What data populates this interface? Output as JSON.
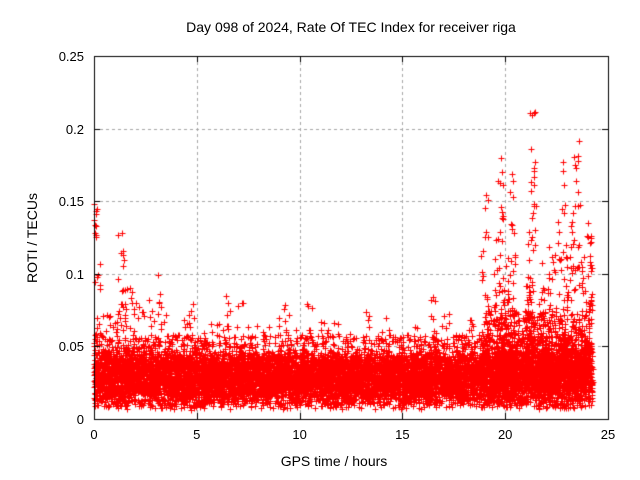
{
  "chart_data": {
    "type": "scatter",
    "title": "Day 098 of 2024, Rate Of TEC Index for receiver riga",
    "xlabel": "GPS time / hours",
    "ylabel": "ROTI / TECUs",
    "xlim": [
      0,
      25
    ],
    "ylim": [
      0,
      0.25
    ],
    "xticks": [
      0,
      5,
      10,
      15,
      20,
      25
    ],
    "xtick_labels": [
      "0",
      "5",
      "10",
      "15",
      "20",
      "25"
    ],
    "yticks": [
      0,
      0.05,
      0.1,
      0.15,
      0.2,
      0.25
    ],
    "ytick_labels": [
      "0",
      "0.05",
      "0.1",
      "0.15",
      "0.2",
      "0.25"
    ],
    "grid": true,
    "grid_style": "dashed",
    "legend": "none",
    "marker": "plus",
    "marker_color": "#ff0000",
    "grid_color": "#a6a6a6",
    "axis_color": "#000000",
    "background_color": "#ffffff",
    "data_x_start": 0.0,
    "data_x_end": 24.25,
    "seed": 98,
    "bands": [
      {
        "x0": 0.0,
        "x1": 24.25,
        "n": 9000,
        "y0": 0.006,
        "y1": 0.048,
        "dist": "tri"
      },
      {
        "x0": 0.0,
        "x1": 24.25,
        "n": 1500,
        "y0": 0.035,
        "y1": 0.058,
        "dist": "pow",
        "p": 2.0
      },
      {
        "x0": 19.0,
        "x1": 24.2,
        "n": 700,
        "y0": 0.03,
        "y1": 0.075,
        "dist": "pow",
        "p": 1.8
      }
    ],
    "clusters": [
      {
        "x": 0.07,
        "dx": 0.07,
        "n": 10,
        "y0": 0.125,
        "y1": 0.152,
        "p": 1.0
      },
      {
        "x": 0.2,
        "dx": 0.15,
        "n": 16,
        "y0": 0.05,
        "y1": 0.11,
        "p": 1.3
      },
      {
        "x": 0.6,
        "dx": 0.3,
        "n": 18,
        "y0": 0.042,
        "y1": 0.075,
        "p": 1.5
      },
      {
        "x": 1.0,
        "dx": 0.2,
        "n": 12,
        "y0": 0.045,
        "y1": 0.09,
        "p": 1.3
      },
      {
        "x": 1.35,
        "dx": 0.2,
        "n": 22,
        "y0": 0.055,
        "y1": 0.13,
        "p": 1.2
      },
      {
        "x": 1.75,
        "dx": 0.25,
        "n": 16,
        "y0": 0.045,
        "y1": 0.095,
        "p": 1.3
      },
      {
        "x": 2.15,
        "dx": 0.3,
        "n": 14,
        "y0": 0.04,
        "y1": 0.08,
        "p": 1.5
      },
      {
        "x": 2.75,
        "dx": 0.25,
        "n": 14,
        "y0": 0.045,
        "y1": 0.083,
        "p": 1.4
      },
      {
        "x": 3.2,
        "dx": 0.12,
        "n": 10,
        "y0": 0.05,
        "y1": 0.1,
        "p": 1.2
      },
      {
        "x": 3.6,
        "dx": 0.3,
        "n": 12,
        "y0": 0.04,
        "y1": 0.075,
        "p": 1.5
      },
      {
        "x": 4.2,
        "dx": 0.25,
        "n": 10,
        "y0": 0.04,
        "y1": 0.07,
        "p": 1.5
      },
      {
        "x": 4.7,
        "dx": 0.2,
        "n": 12,
        "y0": 0.045,
        "y1": 0.08,
        "p": 1.4
      },
      {
        "x": 5.3,
        "dx": 0.2,
        "n": 8,
        "y0": 0.04,
        "y1": 0.065,
        "p": 1.5
      },
      {
        "x": 6.0,
        "dx": 0.3,
        "n": 10,
        "y0": 0.04,
        "y1": 0.07,
        "p": 1.5
      },
      {
        "x": 6.5,
        "dx": 0.15,
        "n": 10,
        "y0": 0.045,
        "y1": 0.085,
        "p": 1.3
      },
      {
        "x": 7.1,
        "dx": 0.15,
        "n": 8,
        "y0": 0.045,
        "y1": 0.082,
        "p": 1.3
      },
      {
        "x": 7.7,
        "dx": 0.3,
        "n": 8,
        "y0": 0.04,
        "y1": 0.065,
        "p": 1.5
      },
      {
        "x": 8.4,
        "dx": 0.2,
        "n": 8,
        "y0": 0.04,
        "y1": 0.065,
        "p": 1.5
      },
      {
        "x": 9.0,
        "dx": 0.2,
        "n": 10,
        "y0": 0.04,
        "y1": 0.07,
        "p": 1.5
      },
      {
        "x": 9.4,
        "dx": 0.15,
        "n": 10,
        "y0": 0.045,
        "y1": 0.08,
        "p": 1.3
      },
      {
        "x": 10.0,
        "dx": 0.3,
        "n": 10,
        "y0": 0.04,
        "y1": 0.065,
        "p": 1.5
      },
      {
        "x": 10.5,
        "dx": 0.15,
        "n": 10,
        "y0": 0.045,
        "y1": 0.083,
        "p": 1.3
      },
      {
        "x": 11.2,
        "dx": 0.3,
        "n": 10,
        "y0": 0.04,
        "y1": 0.07,
        "p": 1.5
      },
      {
        "x": 11.8,
        "dx": 0.2,
        "n": 8,
        "y0": 0.04,
        "y1": 0.072,
        "p": 1.5
      },
      {
        "x": 12.5,
        "dx": 0.3,
        "n": 8,
        "y0": 0.04,
        "y1": 0.065,
        "p": 1.5
      },
      {
        "x": 13.3,
        "dx": 0.2,
        "n": 10,
        "y0": 0.04,
        "y1": 0.075,
        "p": 1.4
      },
      {
        "x": 14.2,
        "dx": 0.2,
        "n": 8,
        "y0": 0.04,
        "y1": 0.07,
        "p": 1.5
      },
      {
        "x": 15.0,
        "dx": 0.3,
        "n": 8,
        "y0": 0.04,
        "y1": 0.06,
        "p": 1.5
      },
      {
        "x": 15.7,
        "dx": 0.2,
        "n": 8,
        "y0": 0.04,
        "y1": 0.065,
        "p": 1.5
      },
      {
        "x": 16.5,
        "dx": 0.2,
        "n": 12,
        "y0": 0.045,
        "y1": 0.088,
        "p": 1.3
      },
      {
        "x": 17.1,
        "dx": 0.2,
        "n": 8,
        "y0": 0.04,
        "y1": 0.078,
        "p": 1.4
      },
      {
        "x": 17.8,
        "dx": 0.3,
        "n": 8,
        "y0": 0.04,
        "y1": 0.06,
        "p": 1.5
      },
      {
        "x": 18.4,
        "dx": 0.2,
        "n": 10,
        "y0": 0.04,
        "y1": 0.072,
        "p": 1.4
      },
      {
        "x": 19.0,
        "dx": 0.2,
        "n": 40,
        "y0": 0.04,
        "y1": 0.12,
        "p": 1.8
      },
      {
        "x": 19.1,
        "dx": 0.1,
        "n": 6,
        "y0": 0.12,
        "y1": 0.155,
        "p": 1.0
      },
      {
        "x": 19.7,
        "dx": 0.25,
        "n": 60,
        "y0": 0.04,
        "y1": 0.13,
        "p": 1.8
      },
      {
        "x": 19.75,
        "dx": 0.15,
        "n": 10,
        "y0": 0.13,
        "y1": 0.18,
        "p": 1.0
      },
      {
        "x": 20.3,
        "dx": 0.25,
        "n": 50,
        "y0": 0.04,
        "y1": 0.12,
        "p": 1.8
      },
      {
        "x": 20.35,
        "dx": 0.1,
        "n": 8,
        "y0": 0.12,
        "y1": 0.17,
        "p": 1.0
      },
      {
        "x": 21.0,
        "dx": 0.2,
        "n": 30,
        "y0": 0.04,
        "y1": 0.1,
        "p": 1.8
      },
      {
        "x": 21.3,
        "dx": 0.2,
        "n": 50,
        "y0": 0.045,
        "y1": 0.15,
        "p": 1.6
      },
      {
        "x": 21.35,
        "dx": 0.12,
        "n": 12,
        "y0": 0.15,
        "y1": 0.213,
        "p": 1.0
      },
      {
        "x": 21.9,
        "dx": 0.25,
        "n": 40,
        "y0": 0.04,
        "y1": 0.11,
        "p": 1.8
      },
      {
        "x": 22.3,
        "dx": 0.2,
        "n": 25,
        "y0": 0.04,
        "y1": 0.12,
        "p": 1.7
      },
      {
        "x": 22.8,
        "dx": 0.25,
        "n": 45,
        "y0": 0.045,
        "y1": 0.14,
        "p": 1.7
      },
      {
        "x": 22.85,
        "dx": 0.1,
        "n": 6,
        "y0": 0.14,
        "y1": 0.187,
        "p": 1.0
      },
      {
        "x": 23.4,
        "dx": 0.25,
        "n": 50,
        "y0": 0.045,
        "y1": 0.15,
        "p": 1.6
      },
      {
        "x": 23.45,
        "dx": 0.15,
        "n": 8,
        "y0": 0.15,
        "y1": 0.192,
        "p": 1.0
      },
      {
        "x": 23.95,
        "dx": 0.25,
        "n": 60,
        "y0": 0.045,
        "y1": 0.115,
        "p": 1.5
      },
      {
        "x": 24.1,
        "dx": 0.15,
        "n": 15,
        "y0": 0.045,
        "y1": 0.135,
        "p": 1.5
      }
    ]
  }
}
